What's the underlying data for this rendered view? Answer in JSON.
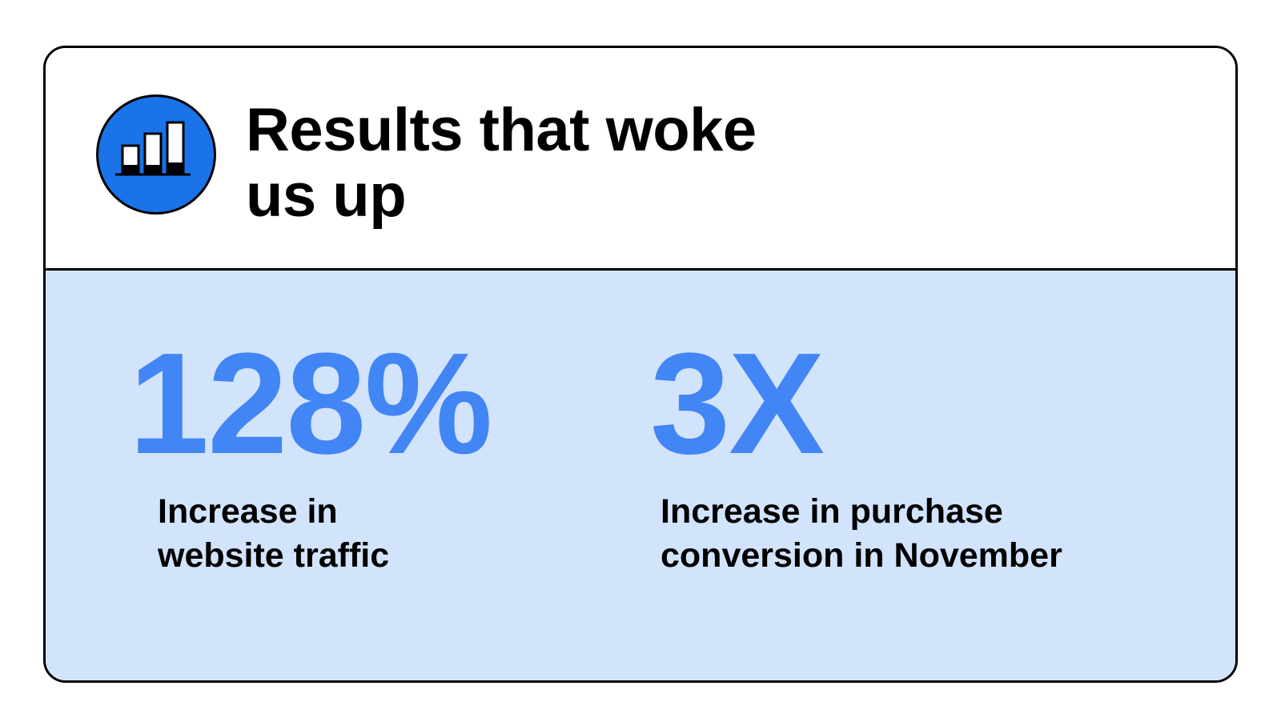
{
  "header": {
    "title_line1": "Results that woke",
    "title_line2": "us up",
    "icon": "bar-chart-icon",
    "icon_color": "#1a73e8"
  },
  "stats": [
    {
      "value": "128%",
      "label_line1": "Increase in",
      "label_line2": "website traffic"
    },
    {
      "value": "3X",
      "label_line1": "Increase in purchase",
      "label_line2": "conversion in November"
    }
  ],
  "colors": {
    "accent": "#4285f4",
    "panel_background": "#d2e3fc",
    "border": "#000000"
  }
}
